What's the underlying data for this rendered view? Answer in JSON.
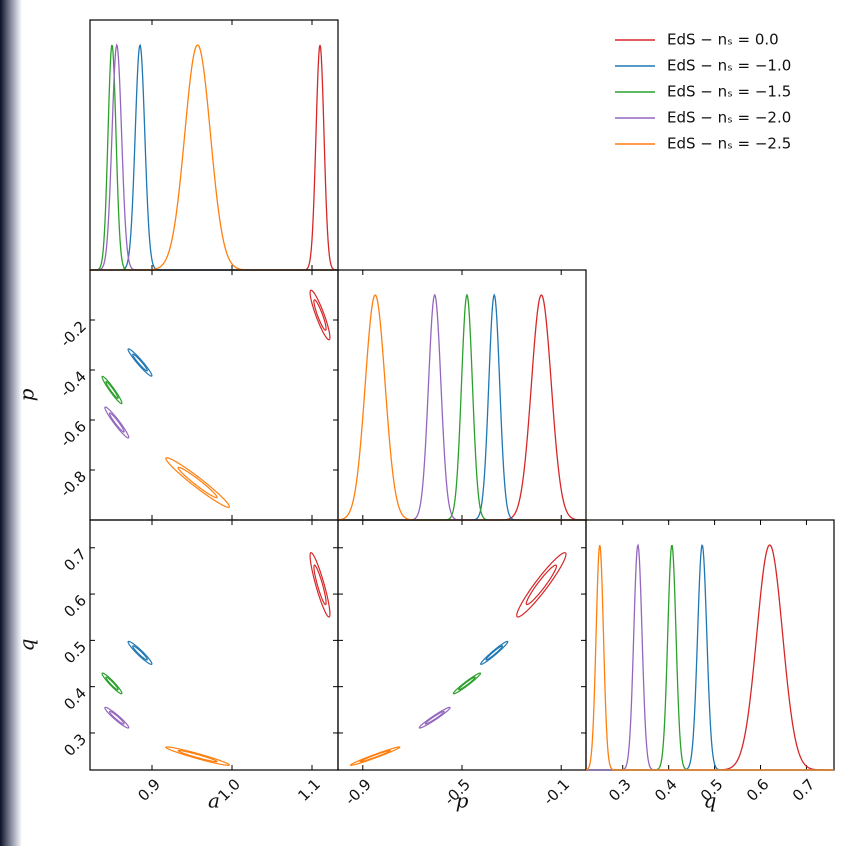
{
  "chart_data": {
    "type": "corner",
    "parameters": [
      {
        "label": "a",
        "lim": [
          0.8225,
          1.1325
        ],
        "xticks": [
          0.9,
          {
            "value": 1,
            "label": "1.0"
          },
          1.1
        ]
      },
      {
        "label": "p",
        "lim": [
          -1.0,
          0.0
        ],
        "xticks": [
          -0.9,
          -0.5,
          -0.1
        ],
        "yticks": [
          -0.2,
          -0.4,
          -0.6,
          -0.8
        ]
      },
      {
        "label": "q",
        "lim": [
          0.22,
          0.76
        ],
        "xticks": [
          0.3,
          0.4,
          0.5,
          0.6,
          0.7
        ],
        "yticks": [
          0.3,
          0.4,
          0.5,
          0.6,
          0.7
        ]
      }
    ],
    "series": [
      {
        "name": "EdS − nₛ = 0.0",
        "color": "#d62728",
        "mean": [
          1.11,
          -0.18,
          0.62
        ],
        "sigma": [
          0.005,
          0.04,
          0.028
        ],
        "corr": [
          -0.9,
          -0.9,
          0.95
        ]
      },
      {
        "name": "EdS − nₛ = −1.0",
        "color": "#1f77b4",
        "mean": [
          0.885,
          -0.37,
          0.473
        ],
        "sigma": [
          0.006,
          0.022,
          0.01
        ],
        "corr": [
          -0.96,
          -0.95,
          0.97
        ]
      },
      {
        "name": "EdS − nₛ = −1.5",
        "color": "#2ca02c",
        "mean": [
          0.85,
          -0.48,
          0.407
        ],
        "sigma": [
          0.005,
          0.022,
          0.009
        ],
        "corr": [
          -0.96,
          -0.95,
          0.97
        ]
      },
      {
        "name": "EdS − nₛ = −2.0",
        "color": "#9467bd",
        "mean": [
          0.856,
          -0.61,
          0.333
        ],
        "sigma": [
          0.006,
          0.025,
          0.009
        ],
        "corr": [
          -0.96,
          -0.95,
          0.97
        ]
      },
      {
        "name": "EdS − nₛ = −2.5",
        "color": "#ff7f0e",
        "mean": [
          0.957,
          -0.85,
          0.25
        ],
        "sigma": [
          0.016,
          0.04,
          0.008
        ],
        "corr": [
          -0.97,
          -0.96,
          0.98
        ]
      }
    ],
    "legend": "upper right"
  }
}
